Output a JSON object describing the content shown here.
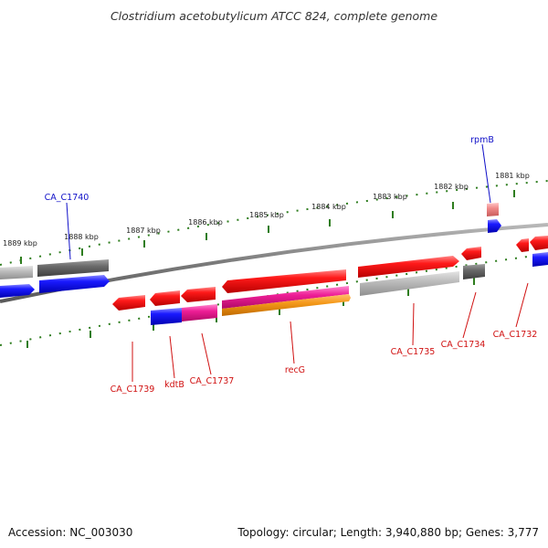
{
  "header": {
    "title": "Clostridium acetobutylicum ATCC 824, complete genome"
  },
  "footer": {
    "accession": "Accession: NC_003030",
    "topology": "Topology: circular; Length: 3,940,880 bp; Genes: 3,777"
  },
  "ruler": {
    "tick_labels": [
      "1889 kbp",
      "1888 kbp",
      "1887 kbp",
      "1886 kbp",
      "1885 kbp",
      "1884 kbp",
      "1883 kbp",
      "1882 kbp",
      "1881 kbp"
    ]
  },
  "genes": {
    "CA_C1740": "CA_C1740",
    "rpmB": "rpmB",
    "CA_C1739": "CA_C1739",
    "kdtB": "kdtB",
    "CA_C1737": "CA_C1737",
    "recG": "recG",
    "CA_C1735": "CA_C1735",
    "CA_C1734": "CA_C1734",
    "CA_C1732": "CA_C1732"
  },
  "colors": {
    "backbone": "#808080",
    "tick": "#2e7d1e",
    "gene_red": "#e8171b",
    "gene_blue": "#1212e0",
    "gene_gray": "#9a9a9a",
    "gene_darkgray": "#5c5c5c",
    "gene_magenta": "#e8148c",
    "gene_orange": "#f39211",
    "gene_pink": "#f08080",
    "label_blue": "#1010c8",
    "label_red": "#d01010"
  }
}
